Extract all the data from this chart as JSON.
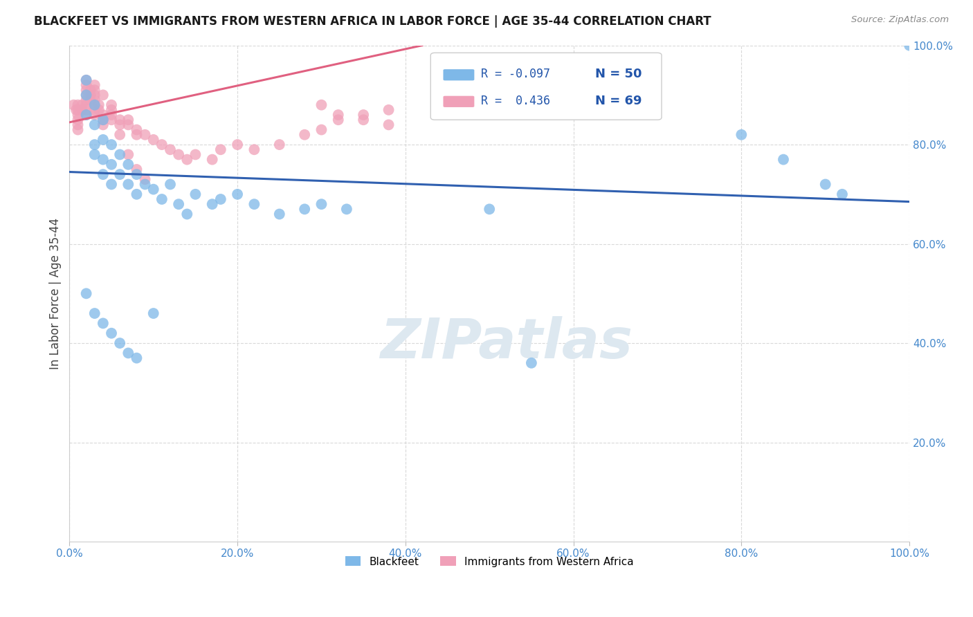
{
  "title": "BLACKFEET VS IMMIGRANTS FROM WESTERN AFRICA IN LABOR FORCE | AGE 35-44 CORRELATION CHART",
  "source": "Source: ZipAtlas.com",
  "ylabel": "In Labor Force | Age 35-44",
  "xlim": [
    0,
    1
  ],
  "ylim": [
    0,
    1
  ],
  "background_color": "#ffffff",
  "grid_color": "#d0d0d0",
  "watermark": "ZIPatlas",
  "blackfeet_color": "#7eb8e8",
  "western_africa_color": "#f0a0b8",
  "blue_line_color": "#3060b0",
  "pink_line_color": "#e06080",
  "blackfeet_x": [
    0.02,
    0.02,
    0.02,
    0.03,
    0.03,
    0.03,
    0.03,
    0.04,
    0.04,
    0.04,
    0.04,
    0.05,
    0.05,
    0.05,
    0.06,
    0.06,
    0.07,
    0.07,
    0.08,
    0.08,
    0.09,
    0.1,
    0.11,
    0.12,
    0.13,
    0.14,
    0.15,
    0.17,
    0.18,
    0.2,
    0.22,
    0.25,
    0.28,
    0.3,
    0.33,
    0.5,
    0.55,
    0.8,
    0.85,
    0.9,
    0.92,
    1.0,
    0.02,
    0.03,
    0.04,
    0.05,
    0.06,
    0.07,
    0.08,
    0.1
  ],
  "blackfeet_y": [
    0.93,
    0.9,
    0.86,
    0.88,
    0.84,
    0.8,
    0.78,
    0.85,
    0.81,
    0.77,
    0.74,
    0.8,
    0.76,
    0.72,
    0.78,
    0.74,
    0.76,
    0.72,
    0.74,
    0.7,
    0.72,
    0.71,
    0.69,
    0.72,
    0.68,
    0.66,
    0.7,
    0.68,
    0.69,
    0.7,
    0.68,
    0.66,
    0.67,
    0.68,
    0.67,
    0.67,
    0.36,
    0.82,
    0.77,
    0.72,
    0.7,
    1.0,
    0.5,
    0.46,
    0.44,
    0.42,
    0.4,
    0.38,
    0.37,
    0.46
  ],
  "western_africa_x": [
    0.005,
    0.008,
    0.01,
    0.01,
    0.01,
    0.01,
    0.01,
    0.01,
    0.015,
    0.015,
    0.02,
    0.02,
    0.02,
    0.02,
    0.02,
    0.02,
    0.025,
    0.025,
    0.025,
    0.03,
    0.03,
    0.03,
    0.03,
    0.03,
    0.035,
    0.035,
    0.04,
    0.04,
    0.04,
    0.05,
    0.05,
    0.05,
    0.06,
    0.06,
    0.07,
    0.07,
    0.08,
    0.08,
    0.09,
    0.1,
    0.11,
    0.12,
    0.13,
    0.14,
    0.15,
    0.17,
    0.18,
    0.2,
    0.22,
    0.25,
    0.28,
    0.3,
    0.32,
    0.35,
    0.38,
    0.02,
    0.02,
    0.03,
    0.03,
    0.04,
    0.05,
    0.06,
    0.07,
    0.08,
    0.09,
    0.3,
    0.32,
    0.35,
    0.38
  ],
  "western_africa_y": [
    0.88,
    0.87,
    0.88,
    0.87,
    0.86,
    0.85,
    0.84,
    0.83,
    0.88,
    0.87,
    0.91,
    0.9,
    0.89,
    0.88,
    0.87,
    0.86,
    0.91,
    0.9,
    0.89,
    0.9,
    0.89,
    0.88,
    0.87,
    0.86,
    0.88,
    0.87,
    0.86,
    0.85,
    0.84,
    0.88,
    0.87,
    0.86,
    0.85,
    0.84,
    0.85,
    0.84,
    0.83,
    0.82,
    0.82,
    0.81,
    0.8,
    0.79,
    0.78,
    0.77,
    0.78,
    0.77,
    0.79,
    0.8,
    0.79,
    0.8,
    0.82,
    0.83,
    0.85,
    0.86,
    0.87,
    0.93,
    0.92,
    0.92,
    0.91,
    0.9,
    0.85,
    0.82,
    0.78,
    0.75,
    0.73,
    0.88,
    0.86,
    0.85,
    0.84
  ],
  "blue_line_x": [
    0.0,
    1.0
  ],
  "blue_line_y": [
    0.745,
    0.685
  ],
  "pink_line_x": [
    0.0,
    0.42
  ],
  "pink_line_y": [
    0.845,
    1.0
  ]
}
